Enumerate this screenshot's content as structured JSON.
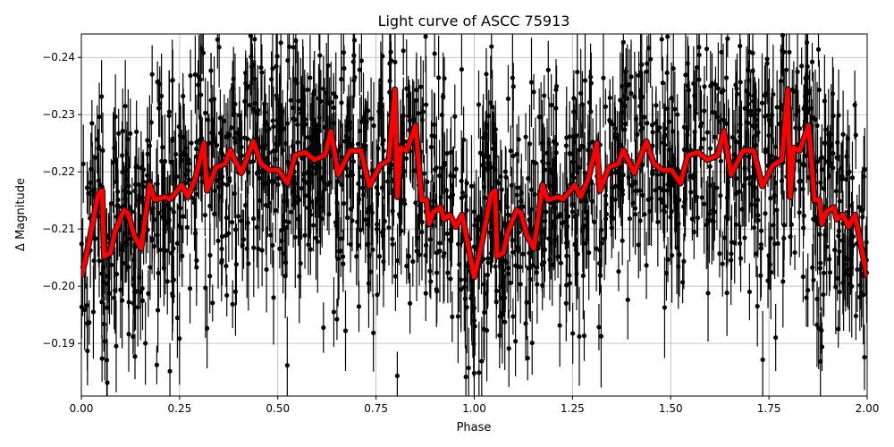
{
  "chart_data": {
    "type": "scatter",
    "title": "Light curve of ASCC 75913",
    "xlabel": "Phase",
    "ylabel": "Δ Magnitude",
    "xlim": [
      0,
      2
    ],
    "ylim": [
      -0.1808,
      -0.2441
    ],
    "y_inverted": true,
    "grid": true,
    "xticks": [
      "0.00",
      "0.25",
      "0.50",
      "0.75",
      "1.00",
      "1.25",
      "1.50",
      "1.75",
      "2.00"
    ],
    "xtick_values": [
      0,
      0.25,
      0.5,
      0.75,
      1,
      1.25,
      1.5,
      1.75,
      2
    ],
    "yticks": [
      "−0.24",
      "−0.23",
      "−0.22",
      "−0.21",
      "−0.20",
      "−0.19"
    ],
    "ytick_values": [
      -0.24,
      -0.23,
      -0.22,
      -0.21,
      -0.2,
      -0.19
    ],
    "points_style": {
      "color": "#000000",
      "marker": "circle",
      "errorbars": true
    },
    "model_curve": {
      "color": "#ff0000",
      "x": [
        0.0,
        0.02,
        0.043,
        0.053,
        0.058,
        0.074,
        0.085,
        0.108,
        0.119,
        0.134,
        0.152,
        0.174,
        0.187,
        0.214,
        0.225,
        0.237,
        0.256,
        0.271,
        0.29,
        0.312,
        0.32,
        0.343,
        0.366,
        0.379,
        0.392,
        0.407,
        0.438,
        0.457,
        0.479,
        0.502,
        0.525,
        0.544,
        0.57,
        0.593,
        0.62,
        0.635,
        0.654,
        0.684,
        0.711,
        0.733,
        0.76,
        0.783,
        0.798,
        0.804,
        0.813,
        0.828,
        0.851,
        0.866,
        0.878,
        0.885,
        0.896,
        0.915,
        0.923,
        0.938,
        0.953,
        0.969,
        1.0,
        1.02,
        1.043,
        1.053,
        1.058,
        1.074,
        1.085,
        1.108,
        1.119,
        1.134,
        1.152,
        1.174,
        1.187,
        1.214,
        1.225,
        1.237,
        1.256,
        1.271,
        1.29,
        1.312,
        1.32,
        1.343,
        1.366,
        1.379,
        1.392,
        1.407,
        1.438,
        1.457,
        1.479,
        1.502,
        1.525,
        1.544,
        1.57,
        1.593,
        1.62,
        1.635,
        1.654,
        1.684,
        1.711,
        1.733,
        1.76,
        1.783,
        1.798,
        1.804,
        1.813,
        1.828,
        1.851,
        1.866,
        1.878,
        1.885,
        1.896,
        1.915,
        1.923,
        1.938,
        1.953,
        1.969,
        2.0
      ],
      "y": [
        -0.2016,
        -0.2078,
        -0.2161,
        -0.2167,
        -0.2052,
        -0.2058,
        -0.2094,
        -0.2133,
        -0.2128,
        -0.2089,
        -0.2066,
        -0.2177,
        -0.2151,
        -0.2156,
        -0.2152,
        -0.2161,
        -0.2177,
        -0.2156,
        -0.2188,
        -0.225,
        -0.2167,
        -0.2208,
        -0.2214,
        -0.2238,
        -0.2219,
        -0.2198,
        -0.2253,
        -0.2214,
        -0.2203,
        -0.2203,
        -0.218,
        -0.2229,
        -0.2234,
        -0.2221,
        -0.2229,
        -0.2271,
        -0.2195,
        -0.2237,
        -0.2237,
        -0.2175,
        -0.2211,
        -0.2221,
        -0.2344,
        -0.2156,
        -0.2242,
        -0.2237,
        -0.2281,
        -0.2151,
        -0.2151,
        -0.2109,
        -0.213,
        -0.2138,
        -0.2117,
        -0.2125,
        -0.2104,
        -0.2125,
        -0.2016,
        -0.2078,
        -0.2161,
        -0.2167,
        -0.2052,
        -0.2058,
        -0.2094,
        -0.2133,
        -0.2128,
        -0.2089,
        -0.2066,
        -0.2177,
        -0.2151,
        -0.2156,
        -0.2152,
        -0.2161,
        -0.2177,
        -0.2156,
        -0.2188,
        -0.225,
        -0.2167,
        -0.2208,
        -0.2214,
        -0.2238,
        -0.2219,
        -0.2198,
        -0.2253,
        -0.2214,
        -0.2203,
        -0.2203,
        -0.218,
        -0.2229,
        -0.2234,
        -0.2221,
        -0.2229,
        -0.2271,
        -0.2195,
        -0.2237,
        -0.2237,
        -0.2175,
        -0.2211,
        -0.2221,
        -0.2344,
        -0.2156,
        -0.2242,
        -0.2237,
        -0.2281,
        -0.2151,
        -0.2151,
        -0.2109,
        -0.213,
        -0.2138,
        -0.2117,
        -0.2125,
        -0.2104,
        -0.2125,
        -0.2016
      ]
    }
  }
}
